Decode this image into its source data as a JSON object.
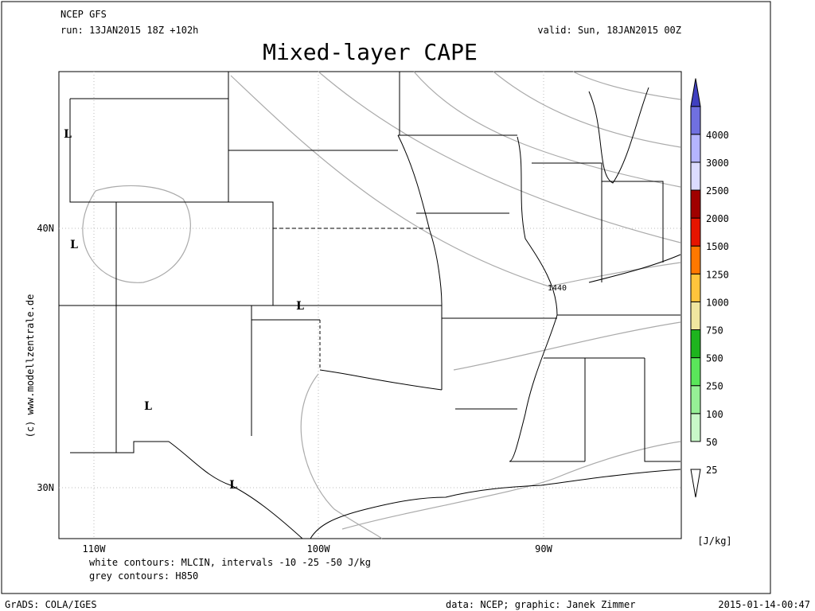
{
  "header": {
    "model": "NCEP GFS",
    "run": "run: 13JAN2015 18Z +102h",
    "valid": "valid: Sun, 18JAN2015 00Z",
    "title": "Mixed-layer CAPE"
  },
  "map": {
    "lat_labels": [
      "40N",
      "30N"
    ],
    "lon_labels": [
      "110W",
      "100W",
      "90W"
    ],
    "lows": [
      "L",
      "L",
      "L",
      "L",
      "L"
    ],
    "contour_label": "1440",
    "credit": "(c) www.modellzentrale.de"
  },
  "colorbar": {
    "unit": "[J/kg]",
    "levels": [
      25,
      50,
      100,
      250,
      500,
      750,
      1000,
      1250,
      1500,
      2000,
      2500,
      3000,
      4000
    ],
    "colors": [
      "#ffffff",
      "#c8f8c8",
      "#96f096",
      "#5ae65a",
      "#1eb41e",
      "#f0e6a0",
      "#ffc43c",
      "#ff7800",
      "#e61400",
      "#a00000",
      "#dcdcff",
      "#b4b4ff",
      "#7070e0",
      "#4040c0"
    ]
  },
  "notes": {
    "white_contours": "white contours: MLCIN, intervals -10 -25 -50 J/kg",
    "grey_contours": "grey contours: H850"
  },
  "footer": {
    "software": "GrADS: COLA/IGES",
    "source": "data: NCEP; graphic: Janek Zimmer",
    "timestamp": "2015-01-14-00:47"
  }
}
